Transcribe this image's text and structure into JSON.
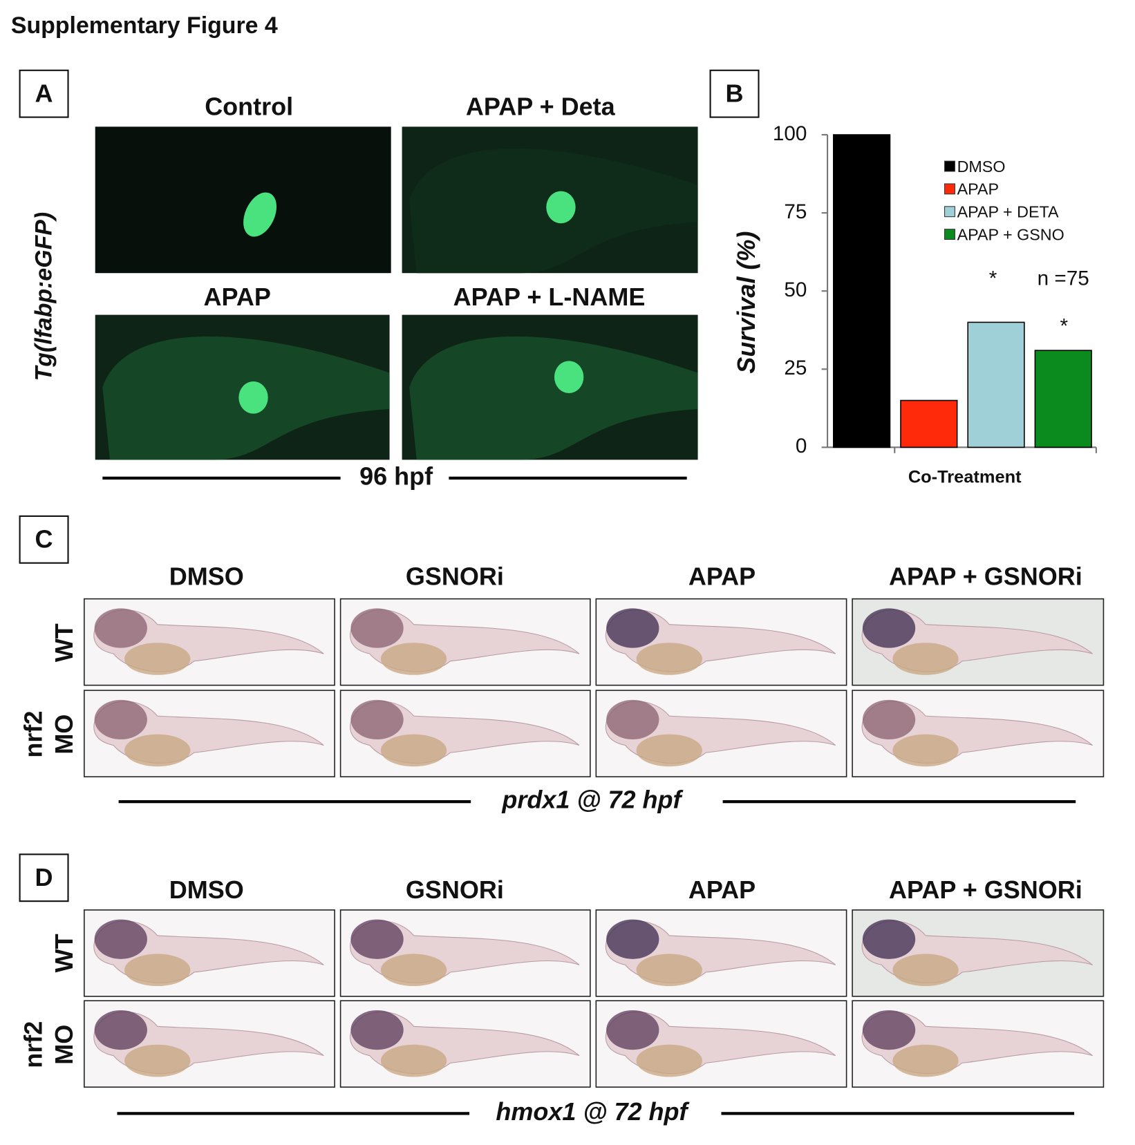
{
  "title": "Supplementary Figure 4",
  "panel_a": {
    "label": "A",
    "y_label": "Tg(lfabp:eGFP)",
    "conditions": [
      "Control",
      "APAP + Deta",
      "APAP",
      "APAP + L-NAME"
    ],
    "footer": "96 hpf"
  },
  "chart_data": {
    "type": "bar",
    "panel_label": "B",
    "y_label": "Survival (%)",
    "categories": [
      "Co-Treatment"
    ],
    "series": [
      {
        "name": "DMSO",
        "color": "#000000",
        "values": [
          100
        ]
      },
      {
        "name": "APAP",
        "color": "#ff2a0a",
        "values": [
          15
        ]
      },
      {
        "name": "APAP + DETA",
        "color": "#9fd0d8",
        "values": [
          40
        ]
      },
      {
        "name": "APAP + GSNO",
        "color": "#0b8a1e",
        "values": [
          31
        ]
      }
    ],
    "ylim": [
      0,
      100
    ],
    "yticks": [
      0,
      25,
      50,
      75,
      100
    ],
    "annotations": [
      "*",
      "n =75",
      "*"
    ]
  },
  "panel_c": {
    "label": "C",
    "columns": [
      "DMSO",
      "GSNORi",
      "APAP",
      "APAP + GSNORi"
    ],
    "rows": [
      [
        "WT"
      ],
      [
        "nrf2",
        "MO"
      ]
    ],
    "footer": "prdx1 @ 72 hpf"
  },
  "panel_d": {
    "label": "D",
    "columns": [
      "DMSO",
      "GSNORi",
      "APAP",
      "APAP + GSNORi"
    ],
    "rows": [
      [
        "WT"
      ],
      [
        "nrf2",
        "MO"
      ]
    ],
    "footer": "hmox1 @ 72 hpf"
  }
}
